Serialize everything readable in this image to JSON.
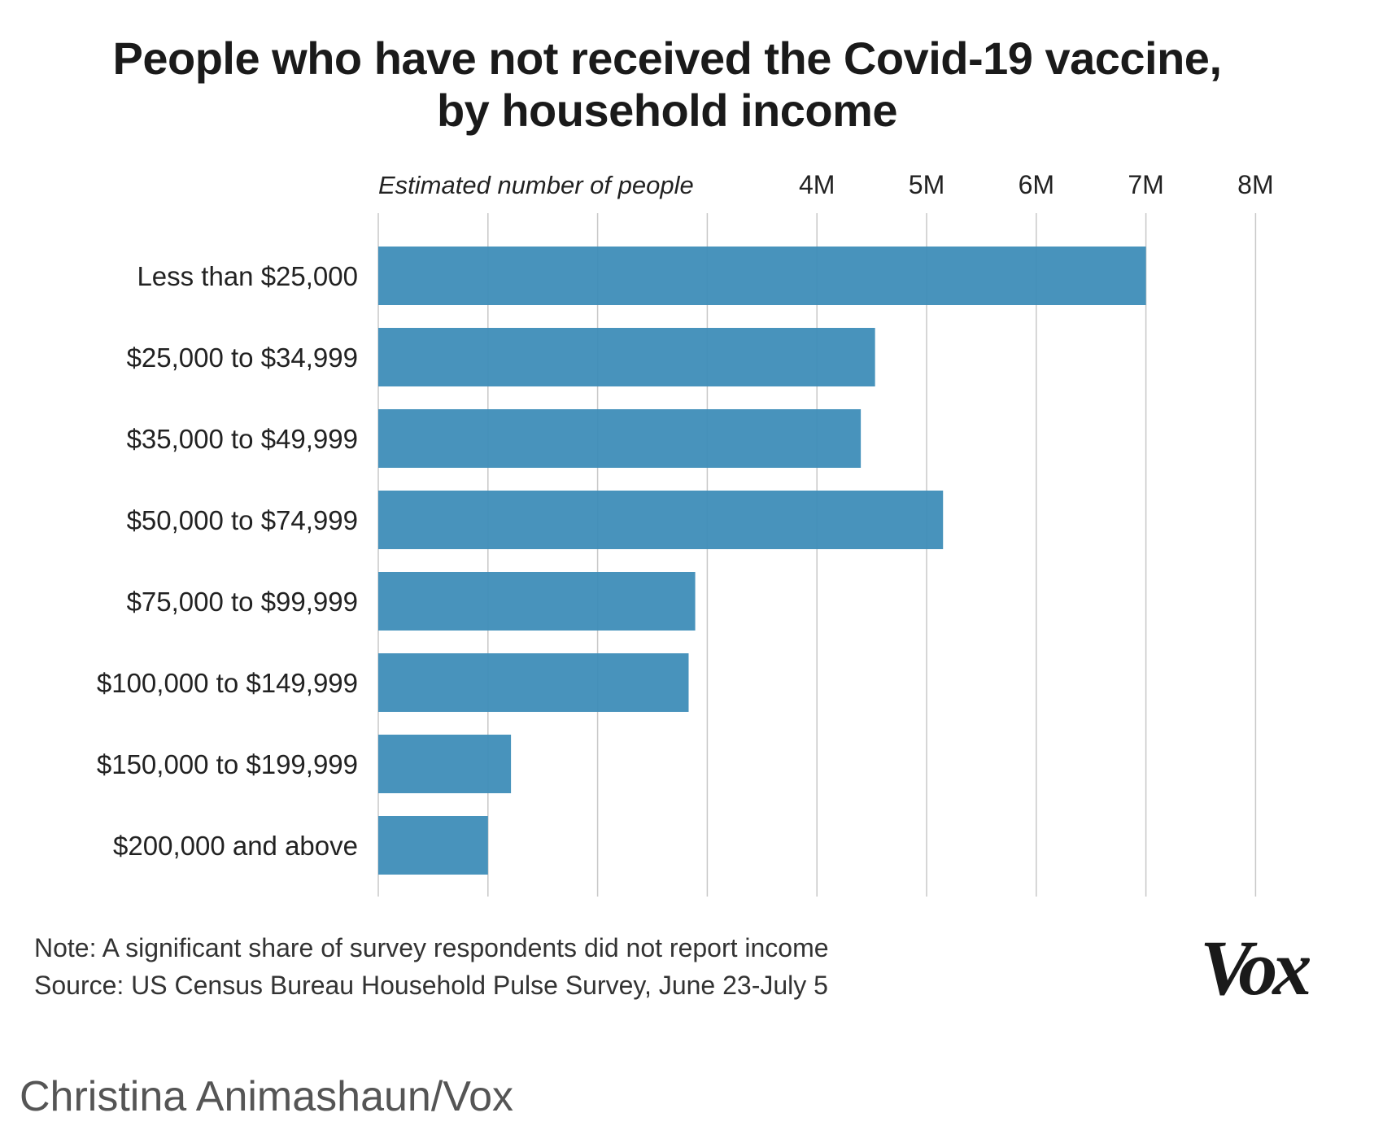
{
  "chart_data": {
    "type": "bar",
    "orientation": "horizontal",
    "title": [
      "People who have not received the Covid-19 vaccine,",
      "by household income"
    ],
    "xlabel": "Estimated number of people",
    "ylabel": "",
    "xlim": [
      0,
      8
    ],
    "x_ticks": [
      1,
      2,
      3,
      4,
      5,
      6,
      7,
      8
    ],
    "x_tick_labels": [
      "4M",
      "5M",
      "6M",
      "7M",
      "8M"
    ],
    "x_tick_labels_start": 4,
    "grid": true,
    "bar_color": "#3e8db8",
    "categories": [
      "Less than $25,000",
      "$25,000 to $34,999",
      "$35,000 to $49,999",
      "$50,000 to $74,999",
      "$75,000 to $99,999",
      "$100,000 to $149,999",
      "$150,000 to $199,999",
      "$200,000 and above"
    ],
    "values": [
      7.0,
      4.53,
      4.4,
      5.15,
      2.89,
      2.83,
      1.21,
      1.0
    ],
    "unit": "M"
  },
  "footnotes": {
    "note": "Note: A significant share of survey respondents did not report income",
    "source": "Source: US Census Bureau Household Pulse Survey, June 23-July 5"
  },
  "logo": {
    "text": "Vox"
  },
  "credit": "Christina Animashaun/Vox"
}
